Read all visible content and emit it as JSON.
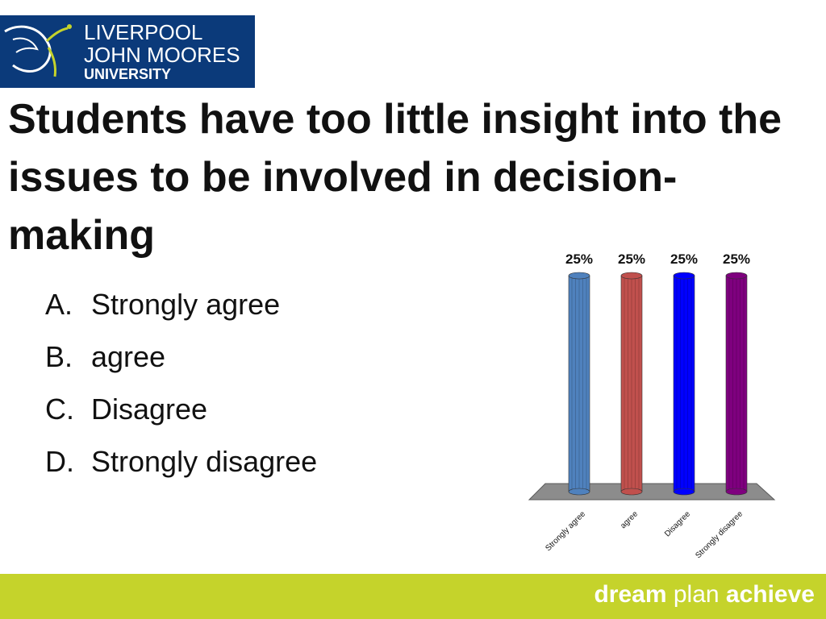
{
  "logo": {
    "line1": "LIVERPOOL",
    "line2": "JOHN MOORES",
    "line3": "UNIVERSITY",
    "icon": "liver-bird-icon",
    "background": "#0b3a7a"
  },
  "slide": {
    "title": "Students have too little insight into the issues to be involved in decision-making",
    "options": [
      {
        "letter": "A.",
        "text": "Strongly agree"
      },
      {
        "letter": "B.",
        "text": "agree"
      },
      {
        "letter": "C.",
        "text": "Disagree"
      },
      {
        "letter": "D.",
        "text": "Strongly disagree"
      }
    ]
  },
  "chart_data": {
    "type": "bar",
    "categories": [
      "Strongly agree",
      "agree",
      "Disagree",
      "Strongly disagree"
    ],
    "values": [
      25,
      25,
      25,
      25
    ],
    "data_labels": [
      "25%",
      "25%",
      "25%",
      "25%"
    ],
    "colors": [
      "#4f81bd",
      "#c0504d",
      "#0000ff",
      "#7f007f"
    ],
    "ylim": [
      0,
      25
    ],
    "grid": false,
    "title": "",
    "xlabel": "",
    "ylabel": ""
  },
  "footer": {
    "tagline_word1": "dream",
    "tagline_word2": "plan",
    "tagline_word3": "achieve",
    "background": "#c5d32b"
  }
}
